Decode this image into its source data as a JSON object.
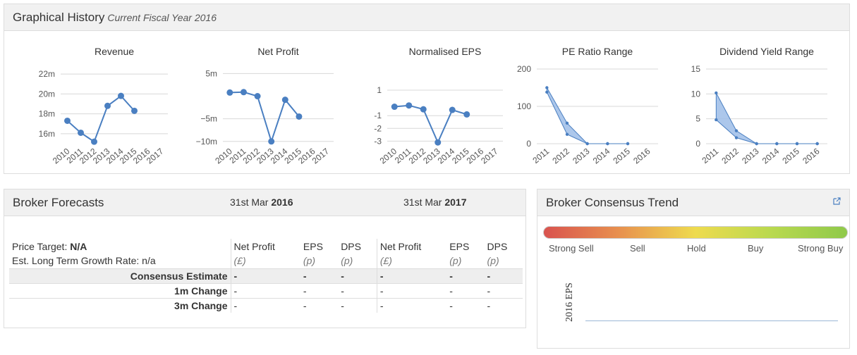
{
  "graphical_history": {
    "title": "Graphical History",
    "subtitle": "Current Fiscal Year 2016"
  },
  "chart_data": [
    {
      "type": "line",
      "title": "Revenue",
      "categories": [
        "2010",
        "2011",
        "2012",
        "2013",
        "2014",
        "2015",
        "2016",
        "2017"
      ],
      "values": [
        17.3,
        16.1,
        15.2,
        18.8,
        19.8,
        18.3,
        null,
        null
      ],
      "y_ticks": [
        "16m",
        "18m",
        "20m",
        "22m"
      ],
      "ylim": [
        15,
        22.5
      ],
      "y_tick_values": [
        16,
        18,
        20,
        22
      ]
    },
    {
      "type": "line",
      "title": "Net Profit",
      "categories": [
        "2010",
        "2011",
        "2012",
        "2013",
        "2014",
        "2015",
        "2016",
        "2017"
      ],
      "values": [
        0.8,
        0.9,
        0.0,
        -10.0,
        -0.8,
        -4.5,
        null,
        null
      ],
      "y_ticks": [
        "5m",
        "−5m",
        "−10m"
      ],
      "ylim": [
        -10.5,
        6
      ],
      "y_tick_values": [
        5,
        -5,
        -10
      ]
    },
    {
      "type": "line",
      "title": "Normalised EPS",
      "categories": [
        "2010",
        "2011",
        "2012",
        "2013",
        "2014",
        "2015",
        "2016",
        "2017"
      ],
      "values": [
        -0.3,
        -0.2,
        -0.5,
        -3.1,
        -0.55,
        -0.9,
        null,
        null
      ],
      "y_ticks": [
        "1",
        "-1",
        "-2",
        "-3"
      ],
      "ylim": [
        -3.2,
        1
      ],
      "y_tick_values": [
        1,
        -1,
        -2,
        -3
      ]
    },
    {
      "type": "area",
      "title": "PE Ratio Range",
      "categories": [
        "2011",
        "2012",
        "2013",
        "2014",
        "2015",
        "2016"
      ],
      "high": [
        150,
        55,
        0,
        0,
        0,
        null
      ],
      "low": [
        138,
        25,
        0,
        0,
        0,
        null
      ],
      "y_ticks": [
        "0",
        "100",
        "200"
      ],
      "ylim": [
        0,
        200
      ],
      "y_tick_values": [
        0,
        100,
        200
      ]
    },
    {
      "type": "area",
      "title": "Dividend Yield Range",
      "categories": [
        "2011",
        "2012",
        "2013",
        "2014",
        "2015",
        "2016"
      ],
      "high": [
        10.2,
        2.6,
        0,
        0,
        0,
        0
      ],
      "low": [
        4.8,
        1.2,
        0,
        0,
        0,
        0
      ],
      "y_ticks": [
        "0",
        "5",
        "10",
        "15"
      ],
      "ylim": [
        0,
        15
      ],
      "y_tick_values": [
        0,
        5,
        10,
        15
      ]
    }
  ],
  "broker_forecasts": {
    "title": "Broker Forecasts",
    "date1_prefix": "31st Mar ",
    "date1_year": "2016",
    "date2_prefix": "31st Mar ",
    "date2_year": "2017",
    "price_target_label": "Price Target: ",
    "price_target_value": "N/A",
    "growth_label": "Est. Long Term Growth Rate: n/a",
    "col_headers": [
      "Net Profit",
      "EPS",
      "DPS",
      "Net Profit",
      "EPS",
      "DPS"
    ],
    "col_units": [
      "(£)",
      "(p)",
      "(p)",
      "(£)",
      "(p)",
      "(p)"
    ],
    "rows": [
      {
        "label": "Consensus Estimate",
        "values": [
          "-",
          "-",
          "-",
          "-",
          "-",
          "-"
        ]
      },
      {
        "label": "1m Change",
        "values": [
          "-",
          "-",
          "-",
          "-",
          "-",
          "-"
        ]
      },
      {
        "label": "3m Change",
        "values": [
          "-",
          "-",
          "-",
          "-",
          "-",
          "-"
        ]
      }
    ]
  },
  "broker_consensus": {
    "title": "Broker Consensus Trend",
    "scale": [
      "Strong Sell",
      "Sell",
      "Hold",
      "Buy",
      "Strong Buy"
    ],
    "axis_label": "2016 EPS",
    "icon": "external-link-icon",
    "colors": {
      "strong_sell": "#d9534f",
      "hold": "#eedb4f",
      "strong_buy": "#8fc94a"
    }
  },
  "colors": {
    "series": "#4a7fc1",
    "area_fill": "#9dbde8"
  }
}
